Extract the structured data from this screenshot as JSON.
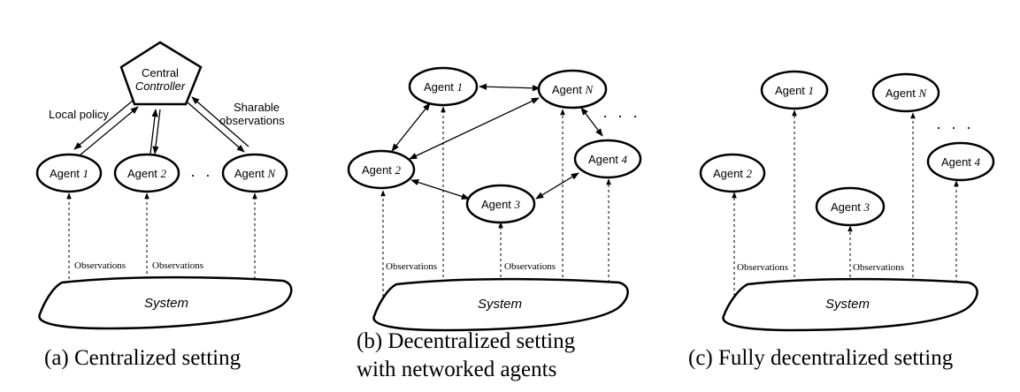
{
  "panel_a": {
    "central": [
      "Central",
      "Controller"
    ],
    "agents": [
      {
        "name": "Agent",
        "idx": "1"
      },
      {
        "name": "Agent",
        "idx": "2"
      },
      {
        "name": "Agent",
        "idx": "N"
      }
    ],
    "ellipsis": "· · ·",
    "local_policy": "Local policy",
    "sharable": [
      "Sharable",
      "observations"
    ],
    "observations": [
      "Observations",
      "Observations"
    ],
    "system": "System",
    "caption": "(a) Centralized setting"
  },
  "panel_b": {
    "agents": [
      {
        "name": "Agent",
        "idx": "1"
      },
      {
        "name": "Agent",
        "idx": "N"
      },
      {
        "name": "Agent",
        "idx": "2"
      },
      {
        "name": "Agent",
        "idx": "4"
      },
      {
        "name": "Agent",
        "idx": "3"
      }
    ],
    "ellipsis": "· · ·",
    "observations": [
      "Observations",
      "Observations"
    ],
    "system": "System",
    "caption": [
      "(b) Decentralized setting",
      "with networked agents"
    ]
  },
  "panel_c": {
    "agents": [
      {
        "name": "Agent",
        "idx": "1"
      },
      {
        "name": "Agent",
        "idx": "N"
      },
      {
        "name": "Agent",
        "idx": "2"
      },
      {
        "name": "Agent",
        "idx": "4"
      },
      {
        "name": "Agent",
        "idx": "3"
      }
    ],
    "ellipsis": "· · ·",
    "observations": [
      "Observations",
      "Observations"
    ],
    "system": "System",
    "caption": "(c) Fully decentralized setting"
  }
}
